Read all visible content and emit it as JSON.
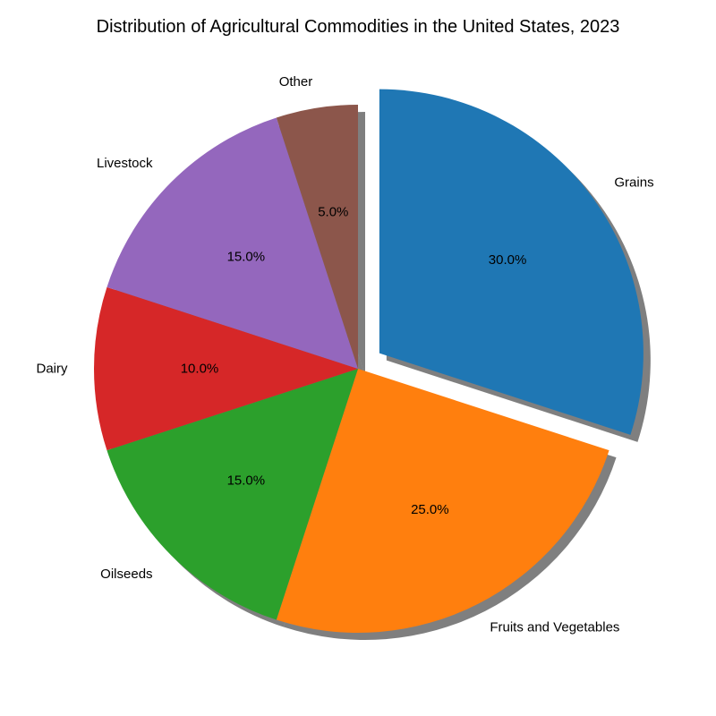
{
  "chart_data": {
    "type": "pie",
    "title": "Distribution of Agricultural Commodities in the United States, 2023",
    "labels": [
      "Grains",
      "Fruits and Vegetables",
      "Oilseeds",
      "Dairy",
      "Livestock",
      "Other"
    ],
    "values": [
      30.0,
      25.0,
      15.0,
      10.0,
      15.0,
      5.0
    ],
    "pct_labels": [
      "30.0%",
      "25.0%",
      "15.0%",
      "10.0%",
      "15.0%",
      "5.0%"
    ],
    "colors": [
      "#1f77b4",
      "#ff7f0e",
      "#2ca02c",
      "#d62728",
      "#9467bd",
      "#8c564b"
    ],
    "start_angle_deg": 90,
    "direction": "clockwise",
    "explode": [
      0.1,
      0,
      0,
      0,
      0,
      0
    ],
    "shadow": true
  }
}
